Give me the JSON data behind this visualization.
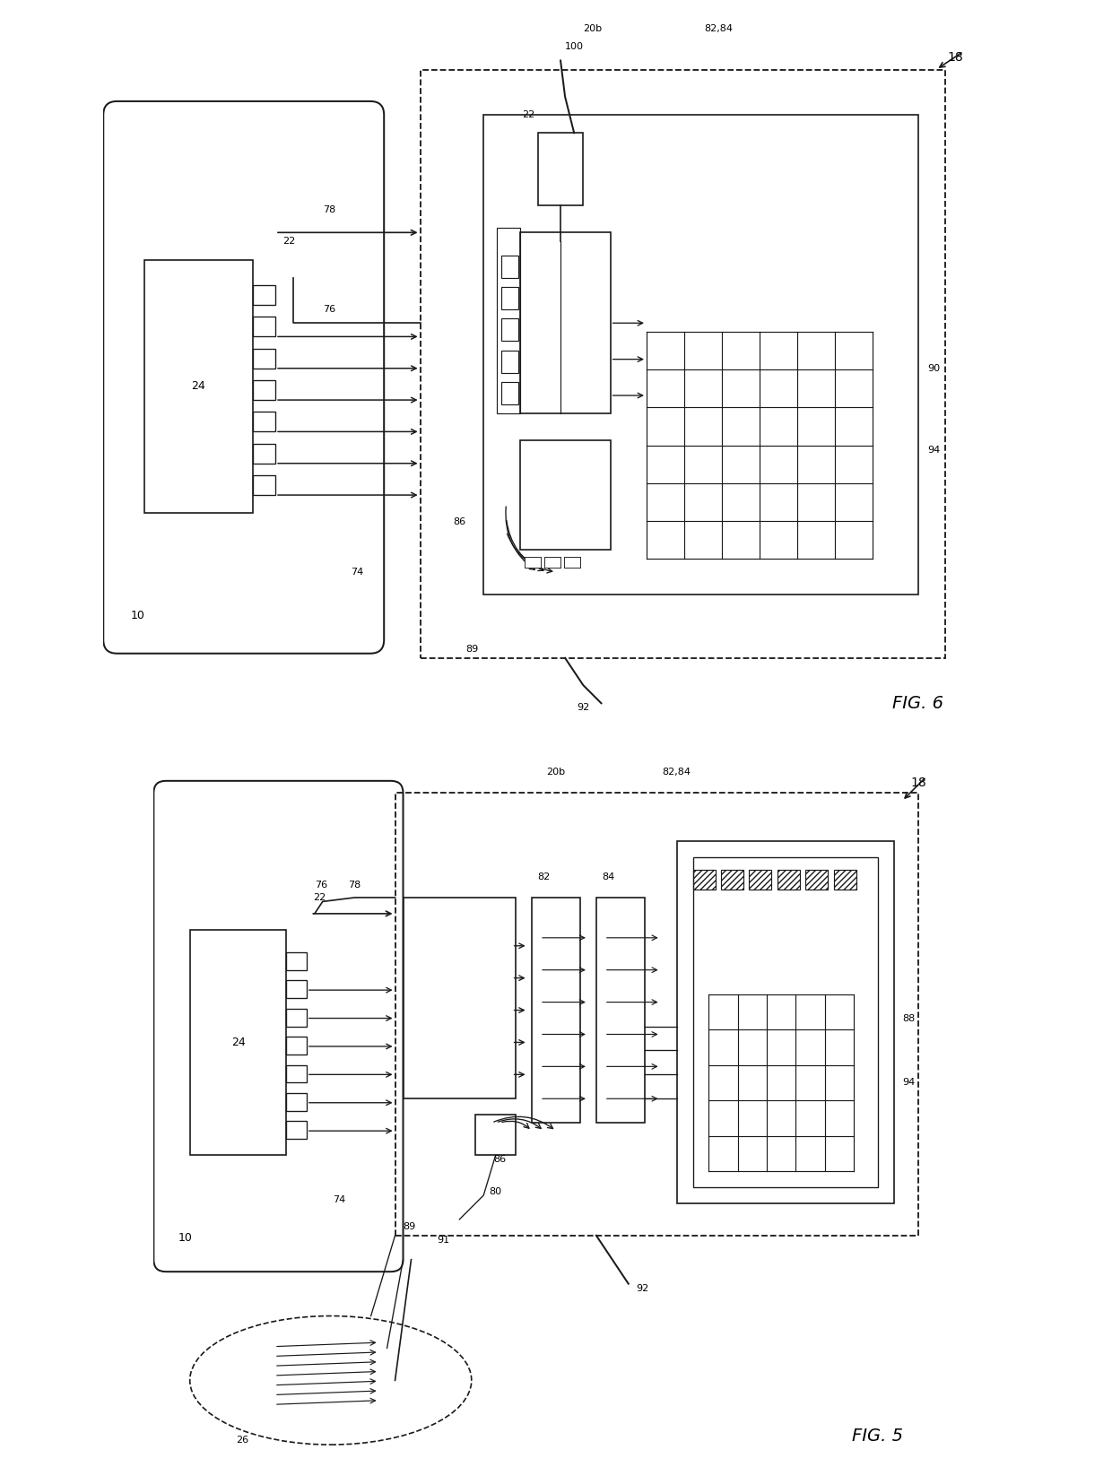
{
  "fig_width": 12.4,
  "fig_height": 16.36,
  "bg_color": "#ffffff",
  "line_color": "#1a1a1a",
  "lw": 1.2,
  "fig6_label": "FIG. 6",
  "fig5_label": "FIG. 5"
}
